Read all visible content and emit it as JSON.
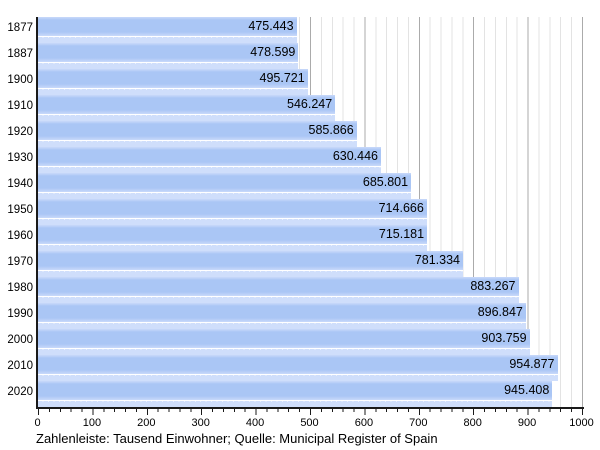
{
  "chart_data": {
    "type": "bar",
    "orientation": "horizontal",
    "title": "",
    "caption": "Zahlenleiste: Tausend Einwohner; Quelle: Municipal Register of Spain",
    "unit": "Tausend Einwohner",
    "source": "Municipal Register of Spain",
    "categories": [
      "1877",
      "1887",
      "1900",
      "1910",
      "1920",
      "1930",
      "1940",
      "1950",
      "1960",
      "1970",
      "1980",
      "1990",
      "2000",
      "2010",
      "2020"
    ],
    "values": [
      475443,
      478599,
      495721,
      546247,
      585866,
      630446,
      685801,
      714666,
      715181,
      781334,
      883267,
      896847,
      903759,
      954877,
      945408
    ],
    "value_labels": [
      "475.443",
      "478.599",
      "495.721",
      "546.247",
      "585.866",
      "630.446",
      "685.801",
      "714.666",
      "715.181",
      "781.334",
      "883.267",
      "896.847",
      "903.759",
      "954.877",
      "945.408"
    ],
    "xlim": [
      0,
      1000
    ],
    "x_ticks": [
      0,
      100,
      200,
      300,
      400,
      500,
      600,
      700,
      800,
      900,
      1000
    ],
    "grid": "minor every 20, major every 100, vertical only",
    "legend": null,
    "colors": {
      "bar": "#aac6f5",
      "bar_top": "#c9d9fa",
      "tile": "#cfdefb",
      "grid_minor": "#e3e3e3",
      "grid_major": "#ababab",
      "axis": "#1a1a1a",
      "text": "#000000",
      "background": "#ffffff"
    }
  }
}
